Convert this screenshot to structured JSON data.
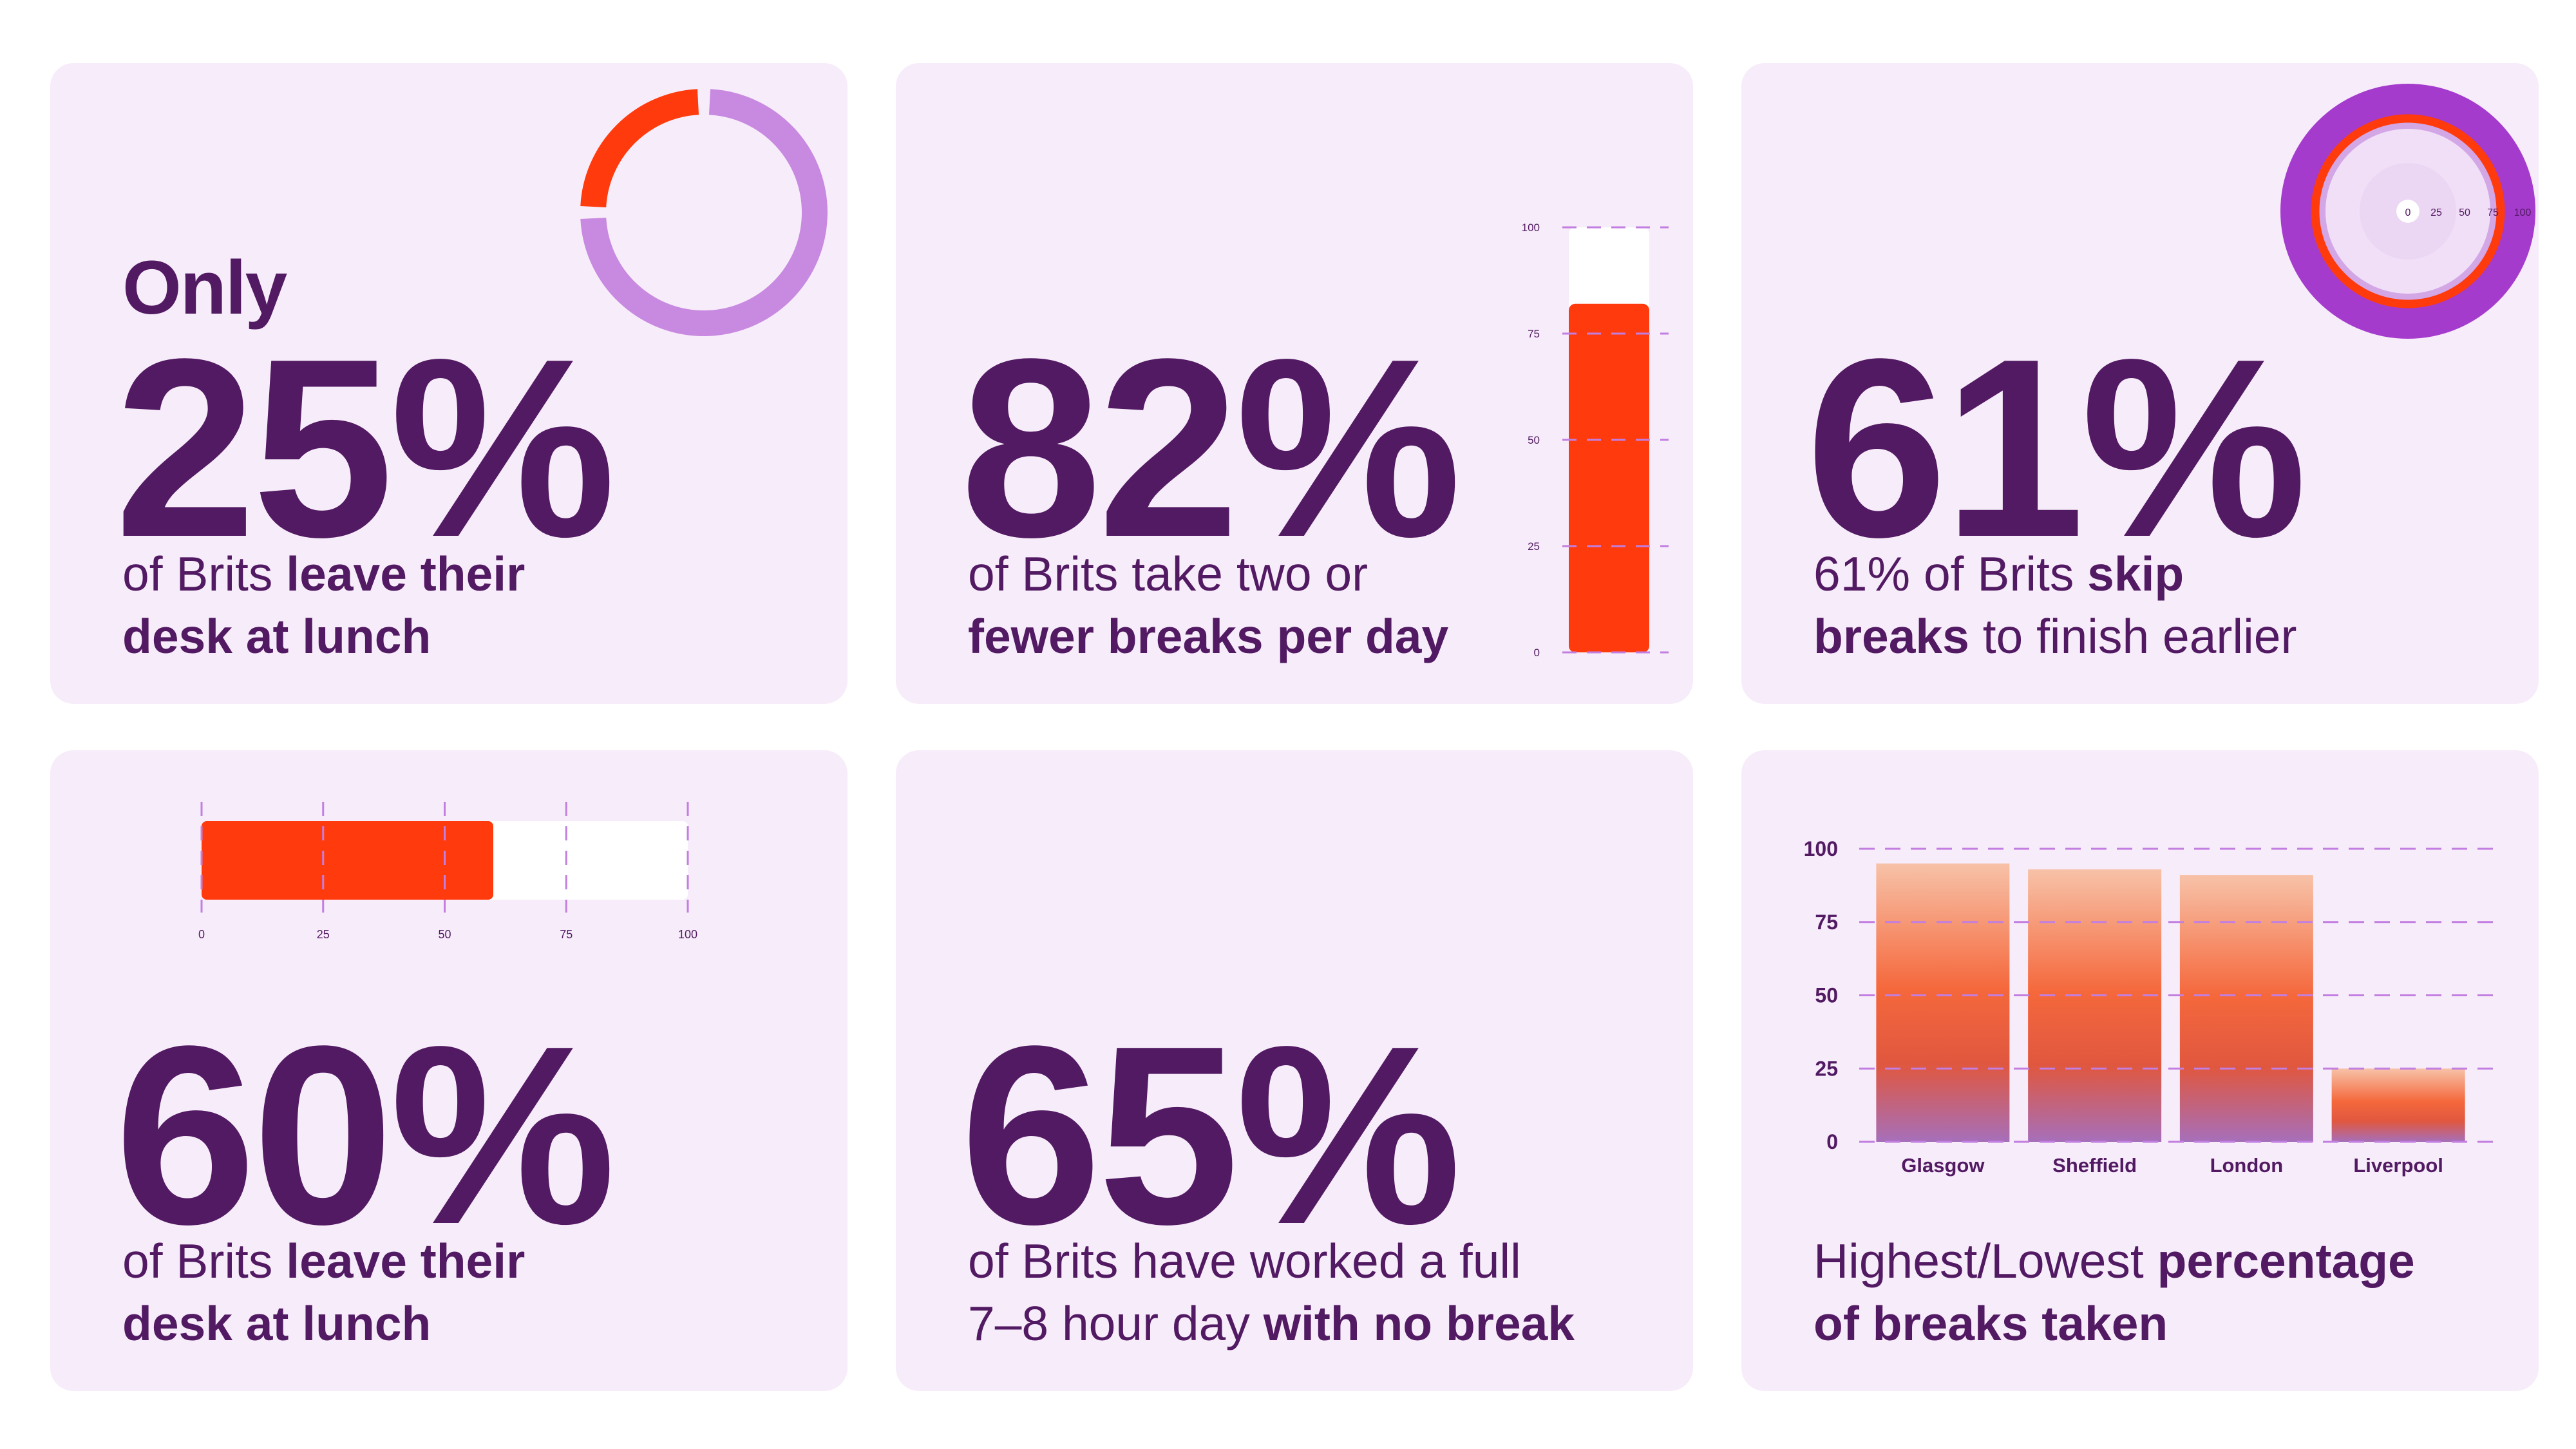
{
  "cards": [
    {
      "prefix": "Only",
      "big": "25%",
      "desc": [
        [
          {
            "t": "of Brits ",
            "b": false
          },
          {
            "t": "leave their",
            "b": true
          }
        ],
        [
          {
            "t": "desk at lunch",
            "b": true
          }
        ]
      ]
    },
    {
      "big": "82%",
      "desc": [
        [
          {
            "t": "of Brits take two or",
            "b": false
          }
        ],
        [
          {
            "t": "fewer breaks per day",
            "b": true
          }
        ]
      ]
    },
    {
      "big": "61%",
      "desc": [
        [
          {
            "t": "61% of Brits ",
            "b": false
          },
          {
            "t": "skip",
            "b": true
          }
        ],
        [
          {
            "t": "breaks",
            "b": true
          },
          {
            "t": " to finish earlier",
            "b": false
          }
        ]
      ]
    },
    {
      "big": "60%",
      "desc": [
        [
          {
            "t": "of Brits ",
            "b": false
          },
          {
            "t": "leave their",
            "b": true
          }
        ],
        [
          {
            "t": "desk at lunch",
            "b": true
          }
        ]
      ]
    },
    {
      "big": "65%",
      "desc": [
        [
          {
            "t": "of Brits have worked a full",
            "b": false
          }
        ],
        [
          {
            "t": "7–8 hour day ",
            "b": false
          },
          {
            "t": "with no break",
            "b": true
          }
        ]
      ]
    },
    {
      "desc": [
        [
          {
            "t": "Highest/Lowest ",
            "b": false
          },
          {
            "t": "percentage",
            "b": true
          }
        ],
        [
          {
            "t": "of breaks taken",
            "b": true
          }
        ]
      ]
    }
  ],
  "colors": {
    "text": "#521a62",
    "card_bg": "#f7ecfa",
    "accent_red": "#ff3a0c",
    "light_purple": "#c889e0",
    "deep_purple": "#a43bcc",
    "grid": "#c27ee0"
  },
  "chart_data": [
    {
      "type": "pie",
      "values": [
        25,
        75
      ],
      "style": "donut"
    },
    {
      "type": "bar",
      "orientation": "vertical",
      "values": [
        82
      ],
      "ylim": [
        0,
        100
      ],
      "yticks": [
        "0",
        "25",
        "50",
        "75",
        "100"
      ],
      "grid": true
    },
    {
      "type": "bar",
      "style": "radial",
      "values": [
        61
      ],
      "range": [
        0,
        100
      ],
      "ticks": [
        "0",
        "25",
        "50",
        "75",
        "100"
      ]
    },
    {
      "type": "bar",
      "orientation": "horizontal",
      "values": [
        60
      ],
      "xlim": [
        0,
        100
      ],
      "xticks": [
        "0",
        "25",
        "50",
        "75",
        "100"
      ],
      "grid": true
    },
    {
      "type": "bar",
      "categories": [
        "Glasgow",
        "Sheffield",
        "London",
        "Liverpool"
      ],
      "values": [
        95,
        93,
        91,
        25
      ],
      "ylim": [
        0,
        100
      ],
      "yticks": [
        "0",
        "25",
        "50",
        "75",
        "100"
      ],
      "grid": true
    }
  ]
}
